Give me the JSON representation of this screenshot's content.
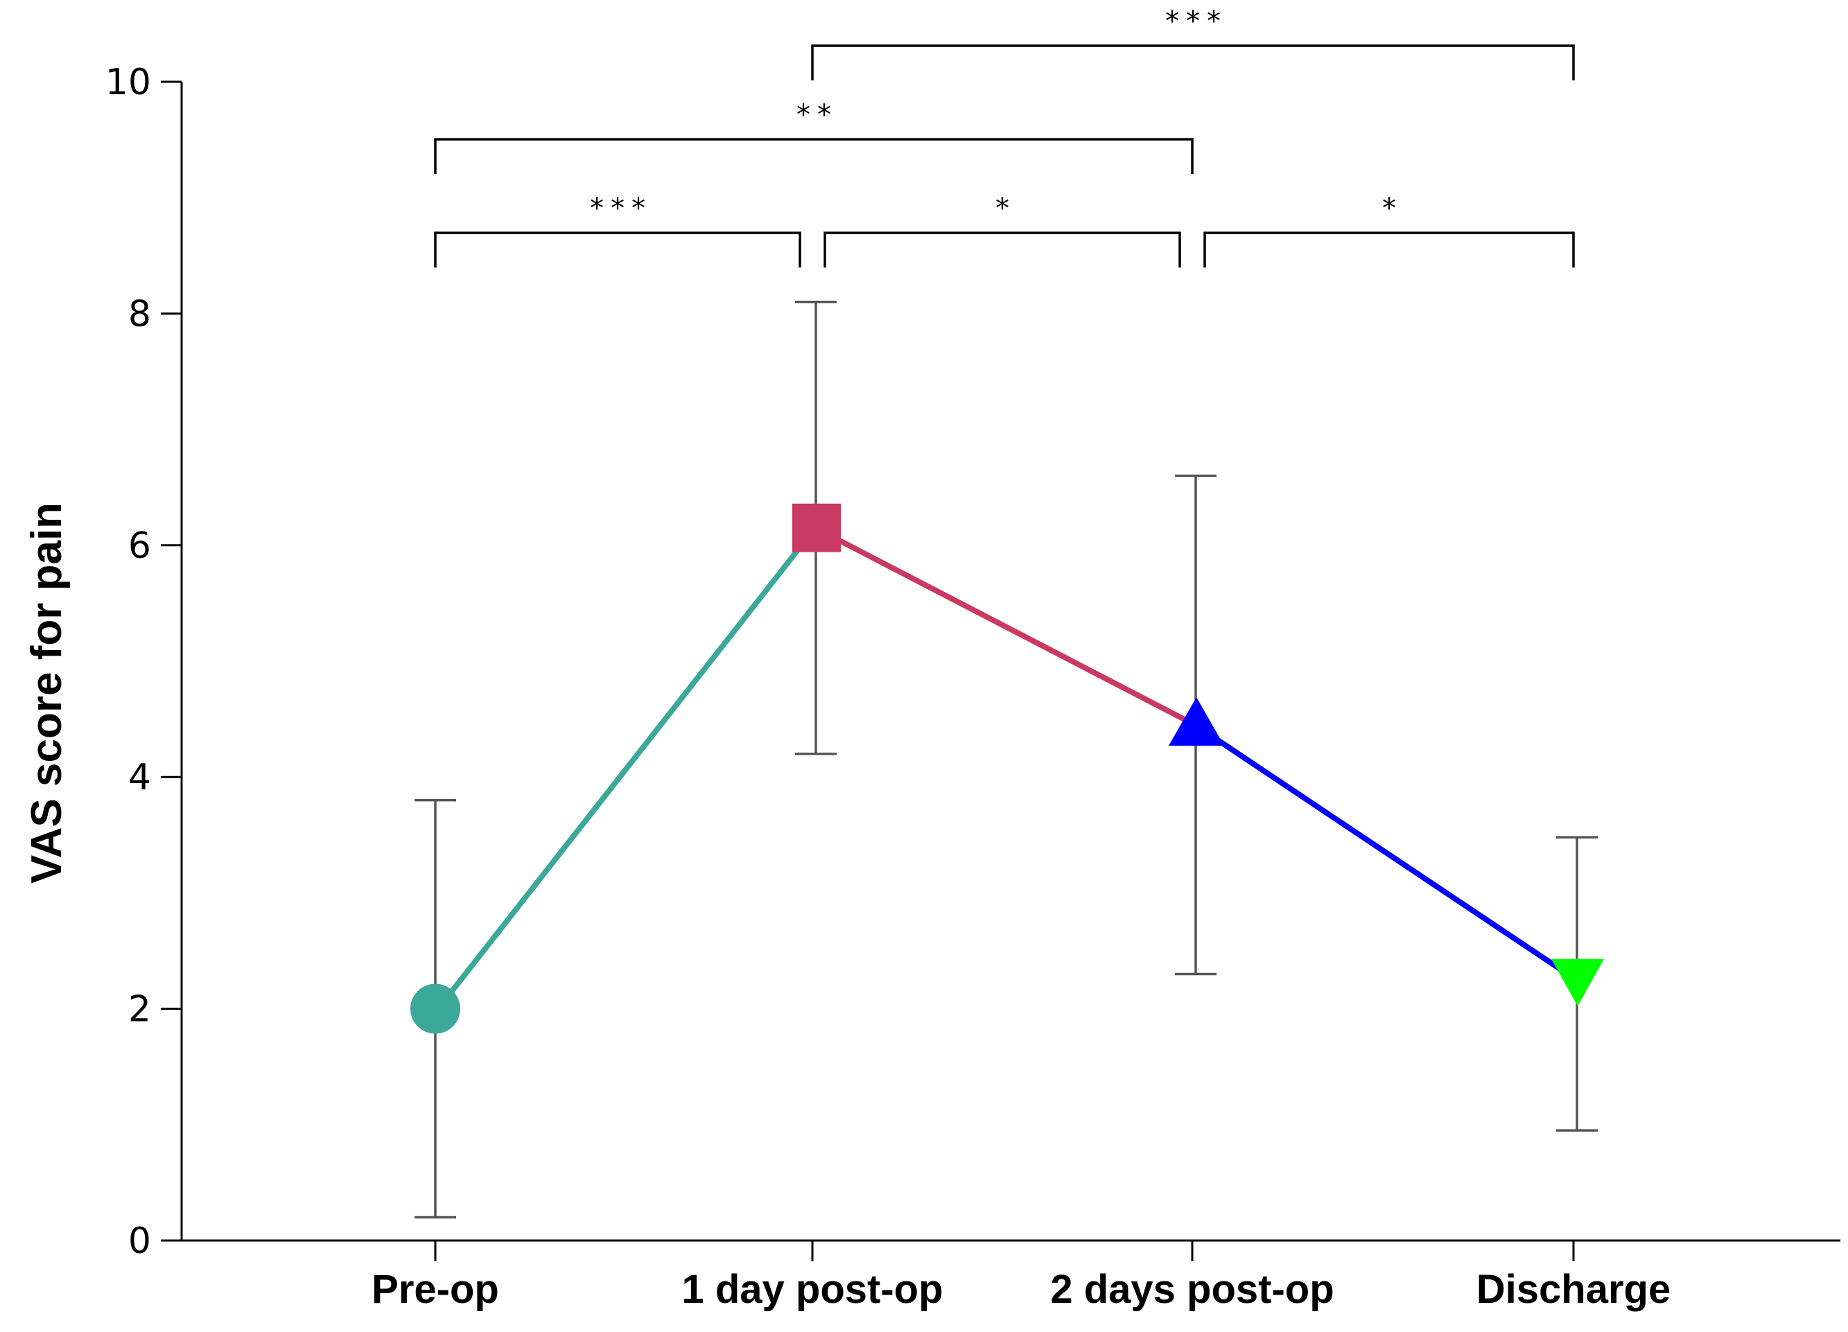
{
  "chart_data": {
    "type": "line",
    "title": "",
    "xlabel": "",
    "ylabel": "VAS score for pain",
    "ylim": [
      0,
      10
    ],
    "yticks": [
      0,
      2,
      4,
      6,
      8,
      10
    ],
    "ytick_labels": [
      "0",
      "2",
      "4",
      "6",
      "8",
      "10"
    ],
    "categories": [
      "Pre-op",
      "1 day post-op",
      "2 days post-op",
      "Discharge"
    ],
    "points": [
      {
        "category": "Pre-op",
        "mean": 2.0,
        "err_low": 0.2,
        "err_high": 3.8,
        "marker": "circle",
        "color": "#3ba89a"
      },
      {
        "category": "1 day post-op",
        "mean": 6.15,
        "err_low": 4.2,
        "err_high": 8.1,
        "marker": "square",
        "color": "#c93a62"
      },
      {
        "category": "2 days post-op",
        "mean": 4.45,
        "err_low": 2.3,
        "err_high": 6.6,
        "marker": "triangle-up",
        "color": "#0000ff"
      },
      {
        "category": "Discharge",
        "mean": 2.25,
        "err_low": 0.95,
        "err_high": 3.48,
        "marker": "triangle-down",
        "color": "#00ff00"
      }
    ],
    "segments": [
      {
        "from": 0,
        "to": 1,
        "color": "#3ba89a"
      },
      {
        "from": 1,
        "to": 2,
        "color": "#c93a62"
      },
      {
        "from": 2,
        "to": 3,
        "color": "#0000ff"
      }
    ],
    "significance": [
      {
        "from": 0,
        "to": 1,
        "label": "***",
        "level": 1
      },
      {
        "from": 1,
        "to": 2,
        "label": "*",
        "level": 1
      },
      {
        "from": 2,
        "to": 3,
        "label": "*",
        "level": 1
      },
      {
        "from": 0,
        "to": 2,
        "label": "**",
        "level": 2
      },
      {
        "from": 1,
        "to": 3,
        "label": "***",
        "level": 3
      }
    ],
    "grid": false,
    "legend": "none"
  }
}
